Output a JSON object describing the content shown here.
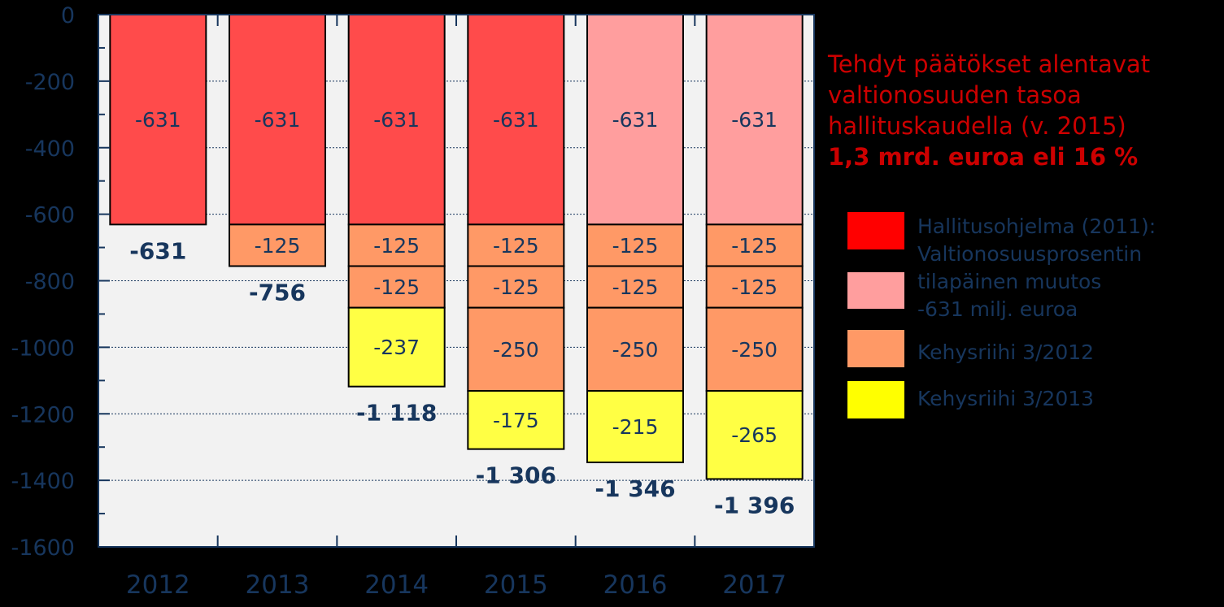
{
  "chart_data": {
    "type": "bar",
    "stacked": true,
    "categories": [
      "2012",
      "2013",
      "2014",
      "2015",
      "2016",
      "2017"
    ],
    "ylim": [
      -1600,
      0
    ],
    "yticks": [
      0,
      -200,
      -400,
      -600,
      -800,
      -1000,
      -1200,
      -1400,
      -1600
    ],
    "grid": true,
    "segments": [
      [
        {
          "value": -631,
          "label": "-631",
          "fill": "#ff4b4b"
        }
      ],
      [
        {
          "value": -631,
          "label": "-631",
          "fill": "#ff4b4b"
        },
        {
          "value": -125,
          "label": "-125",
          "fill": "#ff9966"
        }
      ],
      [
        {
          "value": -631,
          "label": "-631",
          "fill": "#ff4b4b"
        },
        {
          "value": -125,
          "label": "-125",
          "fill": "#ff9966"
        },
        {
          "value": -125,
          "label": "-125",
          "fill": "#ff9966"
        },
        {
          "value": -237,
          "label": "-237",
          "fill": "#ffff44"
        }
      ],
      [
        {
          "value": -631,
          "label": "-631",
          "fill": "#ff4b4b"
        },
        {
          "value": -125,
          "label": "-125",
          "fill": "#ff9966"
        },
        {
          "value": -125,
          "label": "-125",
          "fill": "#ff9966"
        },
        {
          "value": -250,
          "label": "-250",
          "fill": "#ff9966"
        },
        {
          "value": -175,
          "label": "-175",
          "fill": "#ffff44"
        }
      ],
      [
        {
          "value": -631,
          "label": "-631",
          "fill": "#ff9e9e"
        },
        {
          "value": -125,
          "label": "-125",
          "fill": "#ff9966"
        },
        {
          "value": -125,
          "label": "-125",
          "fill": "#ff9966"
        },
        {
          "value": -250,
          "label": "-250",
          "fill": "#ff9966"
        },
        {
          "value": -215,
          "label": "-215",
          "fill": "#ffff44"
        }
      ],
      [
        {
          "value": -631,
          "label": "-631",
          "fill": "#ff9e9e"
        },
        {
          "value": -125,
          "label": "-125",
          "fill": "#ff9966"
        },
        {
          "value": -125,
          "label": "-125",
          "fill": "#ff9966"
        },
        {
          "value": -250,
          "label": "-250",
          "fill": "#ff9966"
        },
        {
          "value": -265,
          "label": "-265",
          "fill": "#ffff44"
        }
      ]
    ],
    "totals": [
      -631,
      -756,
      -1118,
      -1306,
      -1346,
      -1396
    ],
    "total_labels": [
      "-631",
      "-756",
      "-1 118",
      "-1 306",
      "-1 346",
      "-1 396"
    ],
    "annotation": [
      "Tehdyt päätökset  alentavat",
      "valtionosuuden tasoa",
      "hallituskaudella (v. 2015)",
      "1,3 mrd. euroa eli 16 %"
    ],
    "legend": [
      {
        "label": "Hallitusohjelma (2011):",
        "color": "#ff0000"
      },
      {
        "label": "Valtionosuusprosentin",
        "color": "#ff9e9e"
      },
      {
        "label": "tilapäinen muutos",
        "color": ""
      },
      {
        "label": "-631 milj. euroa",
        "color": ""
      },
      {
        "label": "Kehysriihi 3/2012",
        "color": "#ff9966"
      },
      {
        "label": "Kehysriihi 3/2013",
        "color": "#ffff00"
      }
    ],
    "colors": {
      "background": "#000000",
      "plot_area": "#f2f2f2",
      "axis": "#17365d",
      "text": "#17365d",
      "note": "#cc0000",
      "gridline": "#17365d"
    }
  }
}
